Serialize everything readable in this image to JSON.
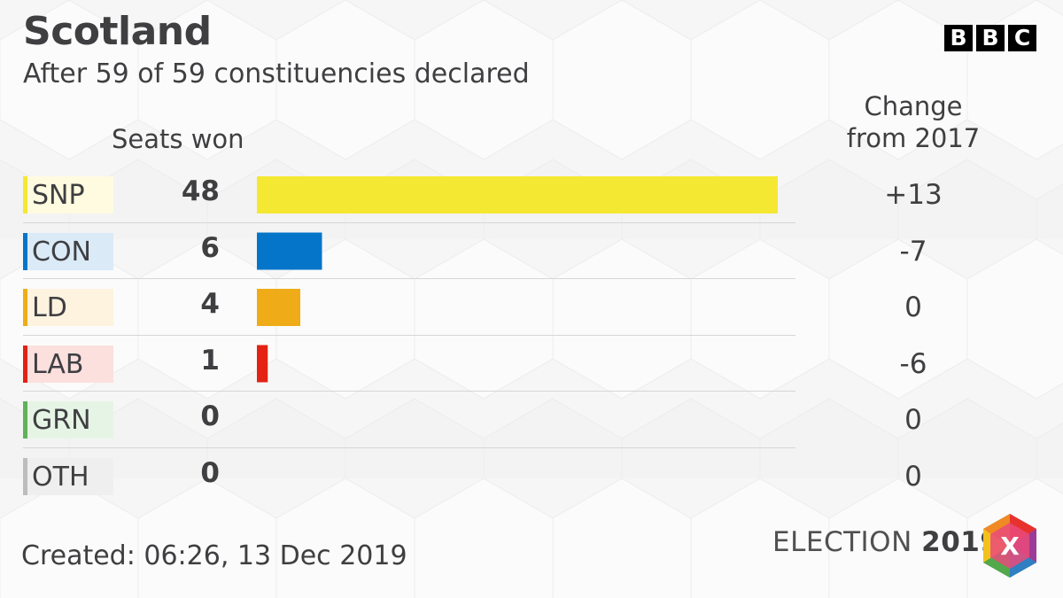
{
  "title": "Scotland",
  "subtitle": "After 59 of 59 constituencies declared",
  "logo": [
    "B",
    "B",
    "C"
  ],
  "headers": {
    "seats": "Seats won",
    "change_line1": "Change",
    "change_line2": "from 2017"
  },
  "chart_data": {
    "type": "bar",
    "orientation": "horizontal",
    "categories": [
      "SNP",
      "CON",
      "LD",
      "LAB",
      "GRN",
      "OTH"
    ],
    "values": [
      48,
      6,
      4,
      1,
      0,
      0
    ],
    "change": [
      "+13",
      "-7",
      "0",
      "-6",
      "0",
      "0"
    ],
    "colors": [
      "#f5e833",
      "#0575c9",
      "#efac18",
      "#e32214",
      "#5fb25a",
      "#bdbdbd"
    ],
    "label_backgrounds": [
      "#fefbe0",
      "#dbeaf7",
      "#fdf3df",
      "#fbe0de",
      "#e6f4e5",
      "#efefef"
    ],
    "title": "Scotland",
    "xlabel": "Seats won",
    "ylabel": "",
    "xlim": [
      0,
      48
    ]
  },
  "footer": {
    "created": "Created: 06:26, 13 Dec 2019",
    "election_word": "ELECTION",
    "election_year": "2019",
    "x_mark": "X"
  }
}
